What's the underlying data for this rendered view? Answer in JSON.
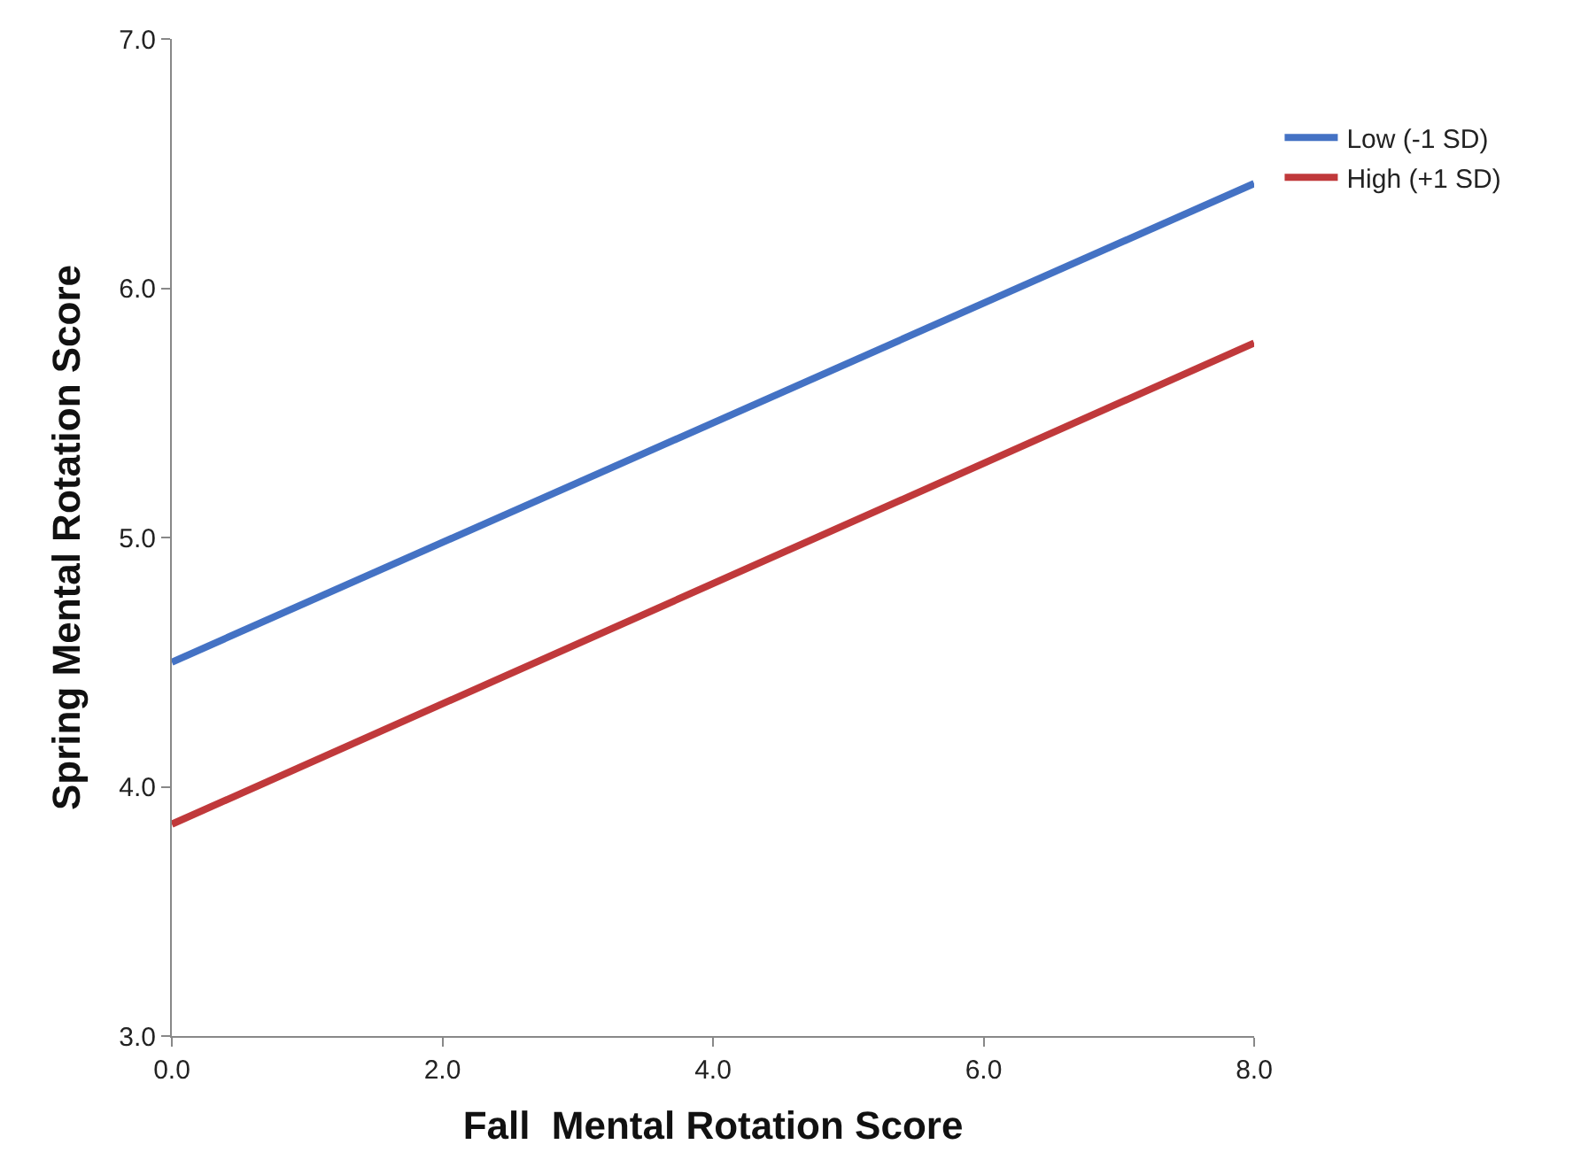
{
  "chart_data": {
    "type": "line",
    "xlabel": "Fall  Mental Rotation Score",
    "ylabel": "Spring Mental Rotation Score",
    "x": [
      0,
      8
    ],
    "series": [
      {
        "name": "Low (-1 SD)",
        "color": "#4472c4",
        "values": [
          4.5,
          6.42
        ]
      },
      {
        "name": "High (+1 SD)",
        "color": "#c0393b",
        "values": [
          3.85,
          5.78
        ]
      }
    ],
    "xlim": [
      0,
      8
    ],
    "xticks": [
      {
        "value": 0,
        "label": "0.0"
      },
      {
        "value": 2,
        "label": "2.0"
      },
      {
        "value": 4,
        "label": "4.0"
      },
      {
        "value": 6,
        "label": "6.0"
      },
      {
        "value": 8,
        "label": "8.0"
      }
    ],
    "ylim": [
      3,
      7
    ],
    "yticks": [
      {
        "value": 3,
        "label": "3.0"
      },
      {
        "value": 4,
        "label": "4.0"
      },
      {
        "value": 5,
        "label": "5.0"
      },
      {
        "value": 6,
        "label": "6.0"
      },
      {
        "value": 7,
        "label": "7.0"
      }
    ],
    "legend": "right",
    "marker": "none",
    "line_style": "solid"
  }
}
